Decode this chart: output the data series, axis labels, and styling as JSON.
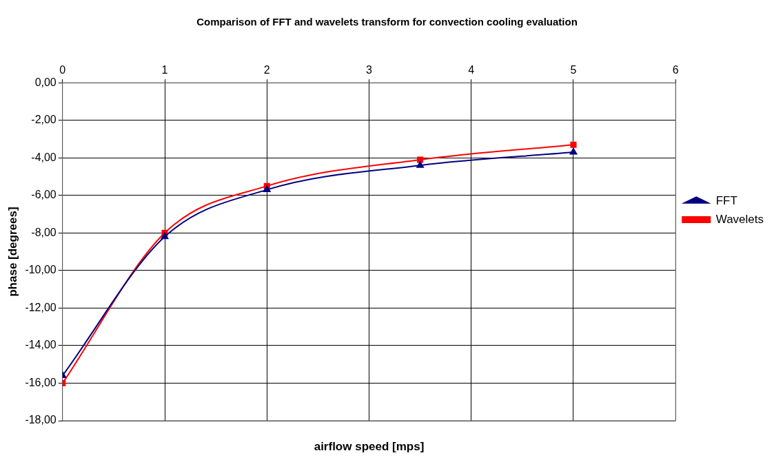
{
  "chart_data": {
    "type": "line",
    "title": "Comparison of FFT and wavelets transform for convection cooling evaluation",
    "xlabel": "airflow speed [mps]",
    "ylabel": "phase [degrees]",
    "x": [
      0,
      1,
      2,
      3.5,
      5
    ],
    "series": [
      {
        "name": "FFT",
        "color": "#000080",
        "marker": "triangle",
        "values": [
          -15.6,
          -8.2,
          -5.7,
          -4.4,
          -3.7
        ]
      },
      {
        "name": "Wavelets",
        "color": "#ff0000",
        "marker": "square",
        "values": [
          -16.0,
          -8.0,
          -5.5,
          -4.1,
          -3.3
        ]
      }
    ],
    "xlim": [
      0,
      6
    ],
    "xticks": [
      0,
      1,
      2,
      3,
      4,
      5,
      6
    ],
    "ylim": [
      -18,
      0
    ],
    "yticks": [
      {
        "value": 0,
        "label": "0,00"
      },
      {
        "value": -2,
        "label": "-2,00"
      },
      {
        "value": -4,
        "label": "-4,00"
      },
      {
        "value": -6,
        "label": "-6,00"
      },
      {
        "value": -8,
        "label": "-8,00"
      },
      {
        "value": -10,
        "label": "-10,00"
      },
      {
        "value": -12,
        "label": "-12,00"
      },
      {
        "value": -14,
        "label": "-14,00"
      },
      {
        "value": -16,
        "label": "-16,00"
      },
      {
        "value": -18,
        "label": "-18,00"
      }
    ],
    "grid": true,
    "legend": "right"
  }
}
